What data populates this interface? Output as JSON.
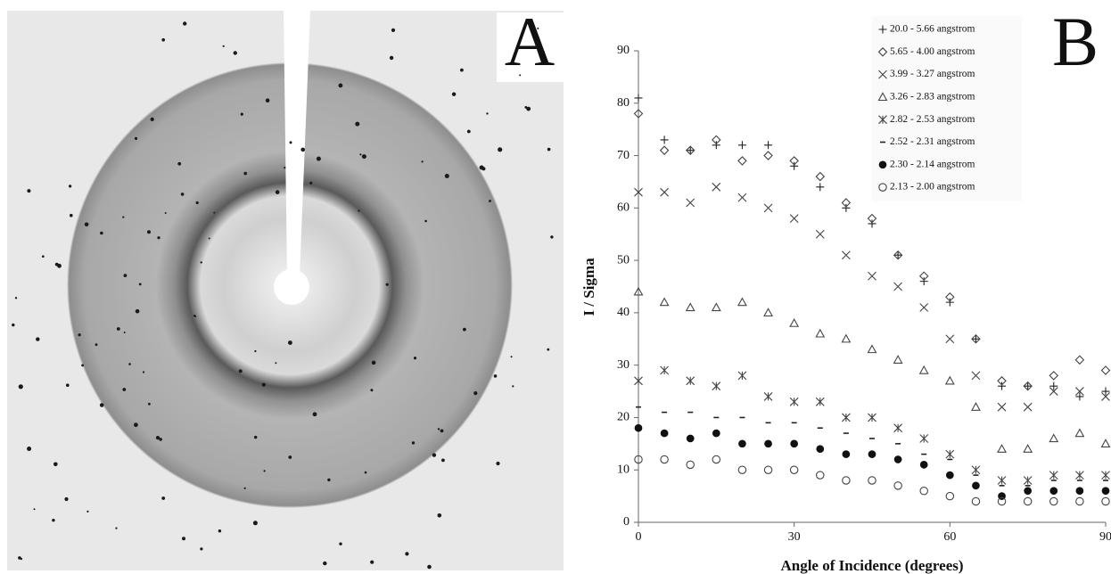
{
  "panel_labels": [
    "A",
    "B"
  ],
  "chart_data": {
    "type": "scatter",
    "xlabel": "Angle of Incidence (degrees)",
    "ylabel": "I / Sigma",
    "x": [
      0,
      5,
      10,
      15,
      20,
      25,
      30,
      35,
      40,
      45,
      50,
      55,
      60,
      65,
      70,
      75,
      80,
      85,
      90
    ],
    "xlim": [
      0,
      90
    ],
    "xticks": [
      0,
      30,
      60,
      90
    ],
    "ylim": [
      0,
      90
    ],
    "yticks": [
      0,
      10,
      20,
      30,
      40,
      50,
      60,
      70,
      80,
      90
    ],
    "legend": "top-right",
    "series": [
      {
        "name": "20.0 - 5.66 angstrom",
        "marker": "plus",
        "color": "#222222",
        "values": [
          81,
          73,
          71,
          72,
          72,
          72,
          68,
          64,
          60,
          57,
          51,
          46,
          42,
          35,
          26,
          26,
          26,
          24,
          25
        ]
      },
      {
        "name": "5.65 - 4.00 angstrom",
        "marker": "diamond",
        "color": "#444444",
        "values": [
          78,
          71,
          71,
          73,
          69,
          70,
          69,
          66,
          61,
          58,
          51,
          47,
          43,
          35,
          27,
          26,
          28,
          31,
          29
        ]
      },
      {
        "name": "3.99 - 3.27 angstrom",
        "marker": "x",
        "color": "#444444",
        "values": [
          63,
          63,
          61,
          64,
          62,
          60,
          58,
          55,
          51,
          47,
          45,
          41,
          35,
          28,
          22,
          22,
          25,
          25,
          24
        ]
      },
      {
        "name": "3.26 - 2.83 angstrom",
        "marker": "triangle",
        "color": "#444444",
        "values": [
          44,
          42,
          41,
          41,
          42,
          40,
          38,
          36,
          35,
          33,
          31,
          29,
          27,
          22,
          14,
          14,
          16,
          17,
          15
        ]
      },
      {
        "name": "2.82 - 2.53 angstrom",
        "marker": "asterisk",
        "color": "#444444",
        "values": [
          27,
          29,
          27,
          26,
          28,
          24,
          23,
          23,
          20,
          20,
          18,
          16,
          13,
          10,
          8,
          8,
          9,
          9,
          9
        ]
      },
      {
        "name": "2.52 - 2.31 angstrom",
        "marker": "dash",
        "color": "#222222",
        "values": [
          22,
          21,
          21,
          20,
          20,
          19,
          19,
          18,
          17,
          16,
          15,
          13,
          12,
          9,
          7,
          7,
          8,
          8,
          8
        ]
      },
      {
        "name": "2.30 - 2.14 angstrom",
        "marker": "dot",
        "color": "#111111",
        "values": [
          18,
          17,
          16,
          17,
          15,
          15,
          15,
          14,
          13,
          13,
          12,
          11,
          9,
          7,
          5,
          6,
          6,
          6,
          6
        ]
      },
      {
        "name": "2.13 - 2.00 angstrom",
        "marker": "circle",
        "color": "#444444",
        "values": [
          12,
          12,
          11,
          12,
          10,
          10,
          10,
          9,
          8,
          8,
          7,
          6,
          5,
          4,
          4,
          4,
          4,
          4,
          4
        ]
      }
    ]
  }
}
